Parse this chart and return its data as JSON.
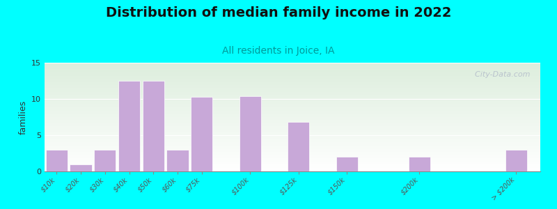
{
  "title": "Distribution of median family income in 2022",
  "subtitle": "All residents in Joice, IA",
  "ylabel": "families",
  "categories": [
    "$10k",
    "$20k",
    "$30k",
    "$40k",
    "$50k",
    "$60k",
    "$75k",
    "$100k",
    "$125k",
    "$150k",
    "$200k",
    "> $200k"
  ],
  "values": [
    3,
    1,
    3,
    12.5,
    12.5,
    3,
    10.3,
    10.4,
    6.8,
    2,
    2,
    3
  ],
  "bar_color": "#c8a8d8",
  "bar_edge_color": "#ffffff",
  "ylim": [
    0,
    15
  ],
  "yticks": [
    0,
    5,
    10,
    15
  ],
  "background_color": "#00ffff",
  "plot_bg_top": "#ddeedd",
  "plot_bg_bottom": "#ffffff",
  "title_fontsize": 14,
  "subtitle_fontsize": 10,
  "subtitle_color": "#009999",
  "ylabel_fontsize": 9,
  "watermark": "  City-Data.com"
}
